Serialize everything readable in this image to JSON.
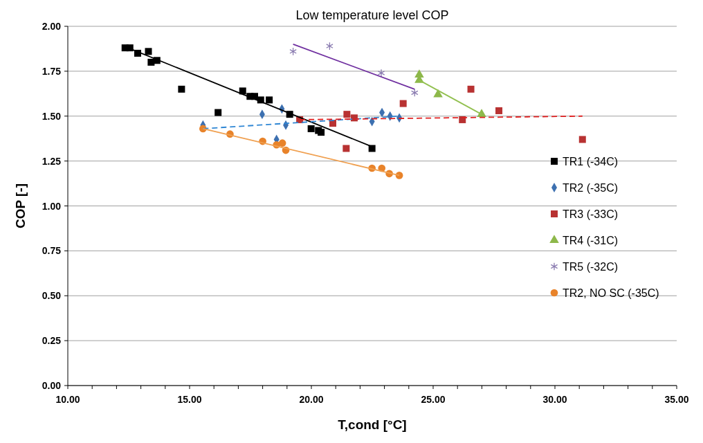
{
  "chart_data": {
    "type": "scatter",
    "title": "Low temperature level COP",
    "xlabel": "T,cond [°C]",
    "ylabel": "COP [-]",
    "xlim": [
      10,
      35
    ],
    "xticks": [
      {
        "value": 10,
        "label": "10.00"
      },
      {
        "value": 11,
        "label": null
      },
      {
        "value": 12,
        "label": null
      },
      {
        "value": 13,
        "label": null
      },
      {
        "value": 14,
        "label": null
      },
      {
        "value": 15,
        "label": "15.00"
      },
      {
        "value": 16,
        "label": null
      },
      {
        "value": 17,
        "label": null
      },
      {
        "value": 18,
        "label": null
      },
      {
        "value": 19,
        "label": null
      },
      {
        "value": 20,
        "label": "20.00"
      },
      {
        "value": 21,
        "label": null
      },
      {
        "value": 22,
        "label": null
      },
      {
        "value": 23,
        "label": null
      },
      {
        "value": 24,
        "label": null
      },
      {
        "value": 25,
        "label": "25.00"
      },
      {
        "value": 26,
        "label": null
      },
      {
        "value": 27,
        "label": null
      },
      {
        "value": 28,
        "label": null
      },
      {
        "value": 29,
        "label": null
      },
      {
        "value": 30,
        "label": "30.00"
      },
      {
        "value": 31,
        "label": null
      },
      {
        "value": 32,
        "label": null
      },
      {
        "value": 33,
        "label": null
      },
      {
        "value": 34,
        "label": null
      },
      {
        "value": 35,
        "label": "35.00"
      }
    ],
    "ylim": [
      0,
      2
    ],
    "yticks": [
      {
        "value": 0,
        "label": "0.00"
      },
      {
        "value": 0.25,
        "label": "0.25"
      },
      {
        "value": 0.5,
        "label": "0.50"
      },
      {
        "value": 0.75,
        "label": "0.75"
      },
      {
        "value": 1,
        "label": "1.00"
      },
      {
        "value": 1.25,
        "label": "1.25"
      },
      {
        "value": 1.5,
        "label": "1.50"
      },
      {
        "value": 1.75,
        "label": "1.75"
      },
      {
        "value": 2,
        "label": "2.00"
      }
    ],
    "grid": "y",
    "legend": "right",
    "series": [
      {
        "name": "TR1 (-34C)",
        "color": "#000000",
        "marker": "square",
        "x": [
          12.35,
          12.55,
          12.87,
          13.31,
          13.42,
          13.66,
          14.67,
          16.17,
          17.18,
          17.48,
          17.67,
          17.92,
          18.27,
          19.11,
          19.99,
          20.29,
          20.4,
          22.49
        ],
        "values": [
          1.88,
          1.88,
          1.85,
          1.86,
          1.8,
          1.81,
          1.65,
          1.52,
          1.64,
          1.61,
          1.61,
          1.59,
          1.59,
          1.51,
          1.43,
          1.42,
          1.41,
          1.32
        ]
      },
      {
        "name": "TR2 (-35C)",
        "color": "#3d70b0",
        "marker": "diamond",
        "x": [
          15.55,
          17.98,
          18.79,
          18.95,
          18.57,
          22.49,
          22.9,
          23.23,
          23.61
        ],
        "values": [
          1.45,
          1.51,
          1.54,
          1.45,
          1.37,
          1.47,
          1.52,
          1.5,
          1.49
        ]
      },
      {
        "name": "TR3 (-33C)",
        "color": "#b83232",
        "marker": "square",
        "x": [
          19.52,
          20.88,
          21.46,
          21.76,
          21.43,
          23.77,
          26.2,
          26.55,
          27.7,
          31.13
        ],
        "values": [
          1.48,
          1.46,
          1.51,
          1.49,
          1.32,
          1.57,
          1.48,
          1.65,
          1.53,
          1.37
        ]
      },
      {
        "name": "TR4 (-31C)",
        "color": "#8db84a",
        "marker": "triangle",
        "x": [
          24.43,
          24.43,
          25.2,
          26.99
        ],
        "values": [
          1.73,
          1.7,
          1.62,
          1.51
        ]
      },
      {
        "name": "TR5 (-32C)",
        "color": "#8a7bb0",
        "marker": "cross",
        "x": [
          19.25,
          20.75,
          22.87,
          24.24
        ],
        "values": [
          1.86,
          1.89,
          1.74,
          1.63
        ]
      },
      {
        "name": "TR2, NO SC (-35C)",
        "color": "#e8832a",
        "marker": "circle",
        "x": [
          15.55,
          16.66,
          18,
          18.57,
          18.81,
          18.95,
          22.49,
          22.89,
          23.2,
          23.61
        ],
        "values": [
          1.43,
          1.4,
          1.36,
          1.34,
          1.35,
          1.31,
          1.21,
          1.21,
          1.18,
          1.17
        ]
      },
      {
        "type": "line",
        "color": "#000000",
        "marker": "none",
        "line_style": "solid",
        "x": [
          12.47,
          22.49
        ],
        "values": [
          1.88,
          1.33
        ]
      },
      {
        "type": "line",
        "color": "#2e86d4",
        "marker": "none",
        "line_style": "dashed",
        "x": [
          15.55,
          23.61
        ],
        "values": [
          1.43,
          1.5
        ]
      },
      {
        "type": "line",
        "color": "#e02020",
        "marker": "none",
        "line_style": "dashed",
        "x": [
          19.52,
          31.13
        ],
        "values": [
          1.48,
          1.5
        ]
      },
      {
        "type": "line",
        "color": "#92c050",
        "marker": "none",
        "line_style": "solid",
        "x": [
          24.43,
          26.99
        ],
        "values": [
          1.7,
          1.51
        ]
      },
      {
        "type": "line",
        "color": "#7030a0",
        "marker": "none",
        "line_style": "solid",
        "x": [
          19.25,
          24.24
        ],
        "values": [
          1.9,
          1.65
        ]
      },
      {
        "type": "line",
        "color": "#f0a050",
        "marker": "none",
        "line_style": "solid",
        "x": [
          15.55,
          23.61
        ],
        "values": [
          1.43,
          1.17
        ]
      }
    ]
  }
}
